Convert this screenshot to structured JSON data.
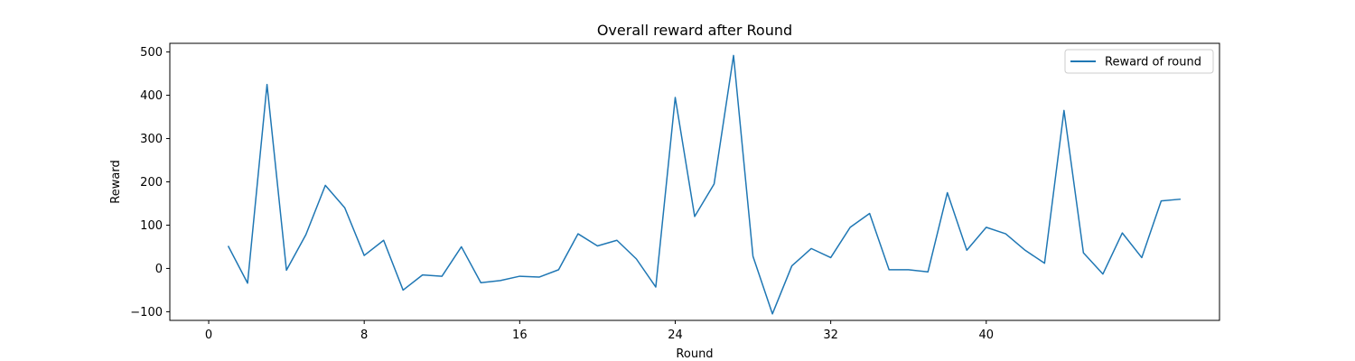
{
  "chart_data": {
    "type": "line",
    "title": "Overall reward after Round",
    "xlabel": "Round",
    "ylabel": "Reward",
    "xlim": [
      -2,
      52
    ],
    "ylim": [
      -120,
      520
    ],
    "xticks": [
      0,
      8,
      16,
      24,
      32,
      40
    ],
    "yticks": [
      -100,
      0,
      100,
      200,
      300,
      400,
      500
    ],
    "grid": false,
    "legend_position": "top-right",
    "series": [
      {
        "name": "Reward of round",
        "color": "#1f77b4",
        "x": [
          1,
          2,
          3,
          4,
          5,
          6,
          7,
          8,
          9,
          10,
          11,
          12,
          13,
          14,
          15,
          16,
          17,
          18,
          19,
          20,
          21,
          22,
          23,
          24,
          25,
          26,
          27,
          28,
          29,
          30,
          31,
          32,
          33,
          34,
          35,
          36,
          37,
          38,
          39,
          40,
          41,
          42,
          43,
          44,
          45,
          46,
          47,
          48,
          49,
          50
        ],
        "y": [
          52,
          -34,
          425,
          -4,
          78,
          192,
          140,
          30,
          65,
          -50,
          -15,
          -18,
          50,
          -33,
          -28,
          -18,
          -20,
          -3,
          80,
          52,
          65,
          22,
          -43,
          395,
          120,
          195,
          492,
          28,
          -105,
          6,
          46,
          25,
          95,
          127,
          -3,
          -3,
          -8,
          175,
          42,
          95,
          80,
          42,
          12,
          365,
          36,
          -13,
          82,
          25,
          156,
          160
        ]
      }
    ]
  }
}
